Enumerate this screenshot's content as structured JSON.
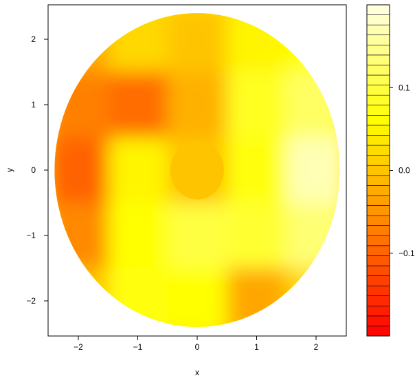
{
  "chart_data": {
    "type": "heatmap",
    "title": "",
    "xlabel": "x",
    "ylabel": "y",
    "xlim": [
      -2.5,
      2.5
    ],
    "ylim": [
      -2.5,
      2.5
    ],
    "x_ticks": [
      -2,
      -1,
      0,
      1,
      2
    ],
    "x_tick_labels": [
      "−2",
      "−1",
      "0",
      "1",
      "2"
    ],
    "y_ticks": [
      -2,
      -1,
      0,
      1,
      2
    ],
    "y_tick_labels": [
      "−2",
      "−1",
      "0",
      "1",
      "2"
    ],
    "domain": {
      "shape": "disc",
      "center": [
        0,
        0
      ],
      "outer_radius": 2.4,
      "inner_radius": 0.45
    },
    "inner_core_value": 0.0,
    "field_samples": {
      "x": [
        -2,
        -1,
        0,
        1,
        2
      ],
      "y": [
        2,
        1,
        0,
        -1,
        -2
      ],
      "z": [
        [
          -0.03,
          0.02,
          0.0,
          0.05,
          0.06
        ],
        [
          -0.07,
          -0.09,
          -0.02,
          0.08,
          0.12
        ],
        [
          -0.1,
          0.05,
          0.0,
          0.07,
          0.17
        ],
        [
          -0.06,
          0.06,
          0.1,
          0.09,
          0.13
        ],
        [
          0.0,
          0.07,
          0.06,
          -0.03,
          0.02
        ]
      ]
    },
    "colorbar": {
      "range": [
        -0.2,
        0.2
      ],
      "levels": 33,
      "ticks": [
        0.1,
        0.0,
        -0.1
      ],
      "tick_labels": [
        "0.1",
        "0.0",
        "−0.1"
      ],
      "colors": {
        "low": "#ff0000",
        "mid": "#ffff00",
        "high": "#ffffe6"
      }
    }
  }
}
